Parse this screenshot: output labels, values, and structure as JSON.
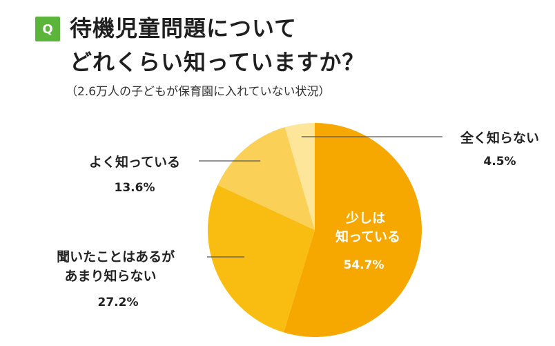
{
  "question_badge": "Q",
  "title_line1": "待機児童問題について",
  "title_line2": "どれくらい知っていますか？",
  "subtitle": "（2.6万人の子どもが保育園に入れていない状況）",
  "chart_data": {
    "type": "pie",
    "title": "待機児童問題についてどれくらい知っていますか？",
    "subtitle": "（2.6万人の子どもが保育園に入れていない状況）",
    "start": "top (12 o'clock)",
    "direction": "clockwise",
    "slices": [
      {
        "label_lines": [
          "少しは",
          "知っている"
        ],
        "value": 54.7,
        "value_text": "54.7%",
        "color": "#f6a800"
      },
      {
        "label_lines": [
          "聞いたことはあるが",
          "あまり知らない"
        ],
        "value": 27.2,
        "value_text": "27.2%",
        "color": "#f9bd12"
      },
      {
        "label_lines": [
          "よく知っている"
        ],
        "value": 13.6,
        "value_text": "13.6%",
        "color": "#fbd057"
      },
      {
        "label_lines": [
          "全く知らない"
        ],
        "value": 4.5,
        "value_text": "4.5%",
        "color": "#fde59a"
      }
    ]
  }
}
